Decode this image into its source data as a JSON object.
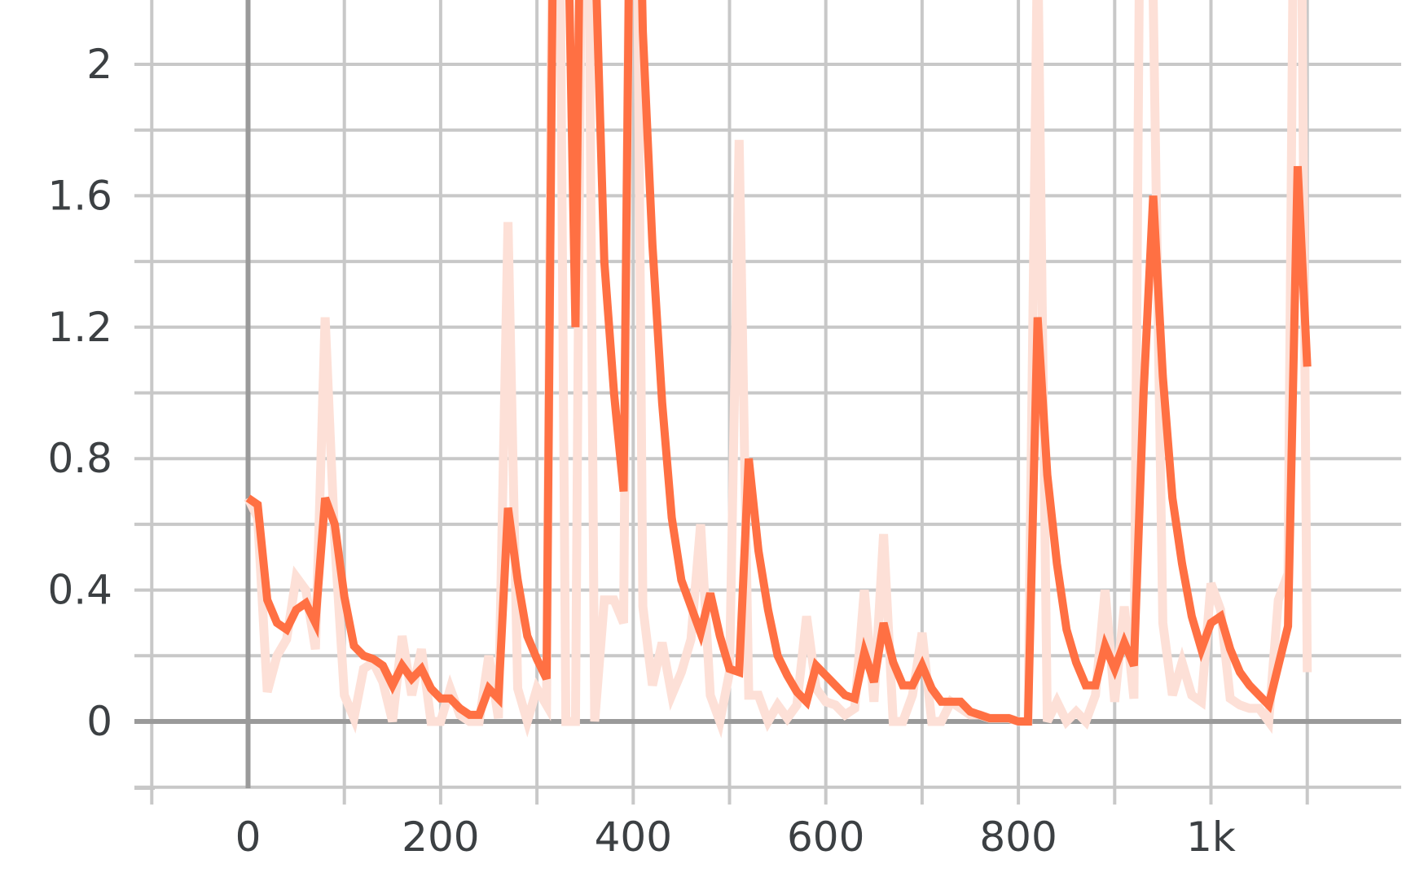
{
  "chart_data": {
    "type": "line",
    "title": "",
    "xlabel": "",
    "ylabel": "",
    "xlim": [
      -100,
      1190
    ],
    "ylim": [
      -0.2,
      2.2
    ],
    "x_ticks": [
      0,
      200,
      400,
      600,
      800,
      1000
    ],
    "x_tick_labels": [
      "0",
      "200",
      "400",
      "600",
      "800",
      "1k"
    ],
    "y_ticks": [
      0,
      0.4,
      0.8,
      1.2,
      1.6,
      2.0
    ],
    "y_tick_labels": [
      "0",
      "0.4",
      "0.8",
      "1.2",
      "1.6",
      "2"
    ],
    "grid": true,
    "colors": {
      "smoothed": "#ff7043",
      "raw": "#fde0d7",
      "grid": "#c8c8c8",
      "axis": "#9a9a9a"
    },
    "series": [
      {
        "role": "raw",
        "x": [
          0,
          10,
          20,
          30,
          40,
          50,
          60,
          70,
          80,
          90,
          100,
          110,
          120,
          130,
          140,
          150,
          160,
          170,
          180,
          190,
          200,
          210,
          220,
          230,
          240,
          250,
          260,
          270,
          280,
          290,
          300,
          310,
          320,
          330,
          340,
          350,
          360,
          370,
          380,
          390,
          400,
          410,
          420,
          430,
          440,
          450,
          460,
          470,
          480,
          490,
          500,
          510,
          520,
          530,
          540,
          550,
          560,
          570,
          580,
          590,
          600,
          610,
          620,
          630,
          640,
          650,
          660,
          670,
          680,
          690,
          700,
          710,
          720,
          730,
          740,
          750,
          760,
          770,
          780,
          790,
          800,
          810,
          820,
          830,
          840,
          850,
          860,
          870,
          880,
          890,
          900,
          910,
          920,
          930,
          940,
          950,
          960,
          970,
          980,
          990,
          1000,
          1010,
          1020,
          1030,
          1040,
          1050,
          1060,
          1070,
          1080,
          1090,
          1100
        ],
        "y": [
          0.68,
          0.62,
          0.09,
          0.2,
          0.25,
          0.44,
          0.4,
          0.22,
          1.23,
          0.55,
          0.08,
          0.01,
          0.16,
          0.18,
          0.12,
          0.0,
          0.26,
          0.08,
          0.22,
          0.0,
          0.0,
          0.1,
          0.02,
          0.0,
          0.0,
          0.2,
          0.01,
          1.52,
          0.1,
          0.0,
          0.1,
          0.05,
          4.0,
          0.0,
          0.0,
          4.0,
          0.0,
          0.37,
          0.37,
          0.3,
          4.0,
          0.35,
          0.11,
          0.24,
          0.08,
          0.15,
          0.25,
          0.6,
          0.08,
          0.0,
          0.15,
          1.77,
          0.08,
          0.08,
          0.0,
          0.05,
          0.01,
          0.05,
          0.32,
          0.1,
          0.06,
          0.05,
          0.02,
          0.04,
          0.4,
          0.06,
          0.57,
          0.0,
          0.0,
          0.08,
          0.27,
          0.0,
          0.0,
          0.06,
          0.04,
          0.02,
          0.02,
          0.01,
          0.01,
          0.01,
          0.0,
          0.0,
          2.4,
          0.0,
          0.06,
          0.0,
          0.03,
          0.0,
          0.08,
          0.4,
          0.06,
          0.35,
          0.07,
          4.0,
          2.2,
          0.3,
          0.08,
          0.18,
          0.08,
          0.06,
          0.42,
          0.34,
          0.07,
          0.05,
          0.04,
          0.04,
          0.0,
          0.37,
          0.45,
          4.0,
          0.15
        ]
      },
      {
        "role": "smoothed",
        "x": [
          0,
          10,
          20,
          30,
          40,
          50,
          60,
          70,
          80,
          90,
          100,
          110,
          120,
          130,
          140,
          150,
          160,
          170,
          180,
          190,
          200,
          210,
          220,
          230,
          240,
          250,
          260,
          270,
          280,
          290,
          300,
          310,
          320,
          330,
          340,
          350,
          360,
          370,
          380,
          390,
          400,
          410,
          420,
          430,
          440,
          450,
          460,
          470,
          480,
          490,
          500,
          510,
          520,
          530,
          540,
          550,
          560,
          570,
          580,
          590,
          600,
          610,
          620,
          630,
          640,
          650,
          660,
          670,
          680,
          690,
          700,
          710,
          720,
          730,
          740,
          750,
          760,
          770,
          780,
          790,
          800,
          810,
          820,
          830,
          840,
          850,
          860,
          870,
          880,
          890,
          900,
          910,
          920,
          930,
          940,
          950,
          960,
          970,
          980,
          990,
          1000,
          1010,
          1020,
          1030,
          1040,
          1050,
          1060,
          1070,
          1080,
          1090,
          1100
        ],
        "y": [
          0.68,
          0.66,
          0.37,
          0.3,
          0.28,
          0.34,
          0.36,
          0.3,
          0.68,
          0.6,
          0.38,
          0.23,
          0.2,
          0.19,
          0.17,
          0.11,
          0.17,
          0.13,
          0.16,
          0.1,
          0.07,
          0.07,
          0.04,
          0.02,
          0.02,
          0.1,
          0.07,
          0.65,
          0.43,
          0.26,
          0.19,
          0.13,
          3.5,
          2.8,
          1.2,
          3.9,
          2.4,
          1.4,
          1.0,
          0.7,
          3.5,
          2.1,
          1.45,
          0.97,
          0.62,
          0.43,
          0.35,
          0.27,
          0.39,
          0.26,
          0.16,
          0.15,
          0.8,
          0.52,
          0.34,
          0.2,
          0.14,
          0.09,
          0.06,
          0.17,
          0.14,
          0.11,
          0.08,
          0.07,
          0.21,
          0.12,
          0.3,
          0.18,
          0.11,
          0.11,
          0.17,
          0.1,
          0.06,
          0.06,
          0.06,
          0.03,
          0.02,
          0.01,
          0.01,
          0.01,
          0.0,
          0.0,
          1.23,
          0.75,
          0.48,
          0.28,
          0.18,
          0.11,
          0.11,
          0.23,
          0.16,
          0.24,
          0.17,
          1.0,
          1.6,
          1.05,
          0.68,
          0.48,
          0.32,
          0.22,
          0.3,
          0.32,
          0.22,
          0.15,
          0.11,
          0.08,
          0.05,
          0.17,
          0.29,
          1.69,
          1.08
        ]
      }
    ]
  }
}
